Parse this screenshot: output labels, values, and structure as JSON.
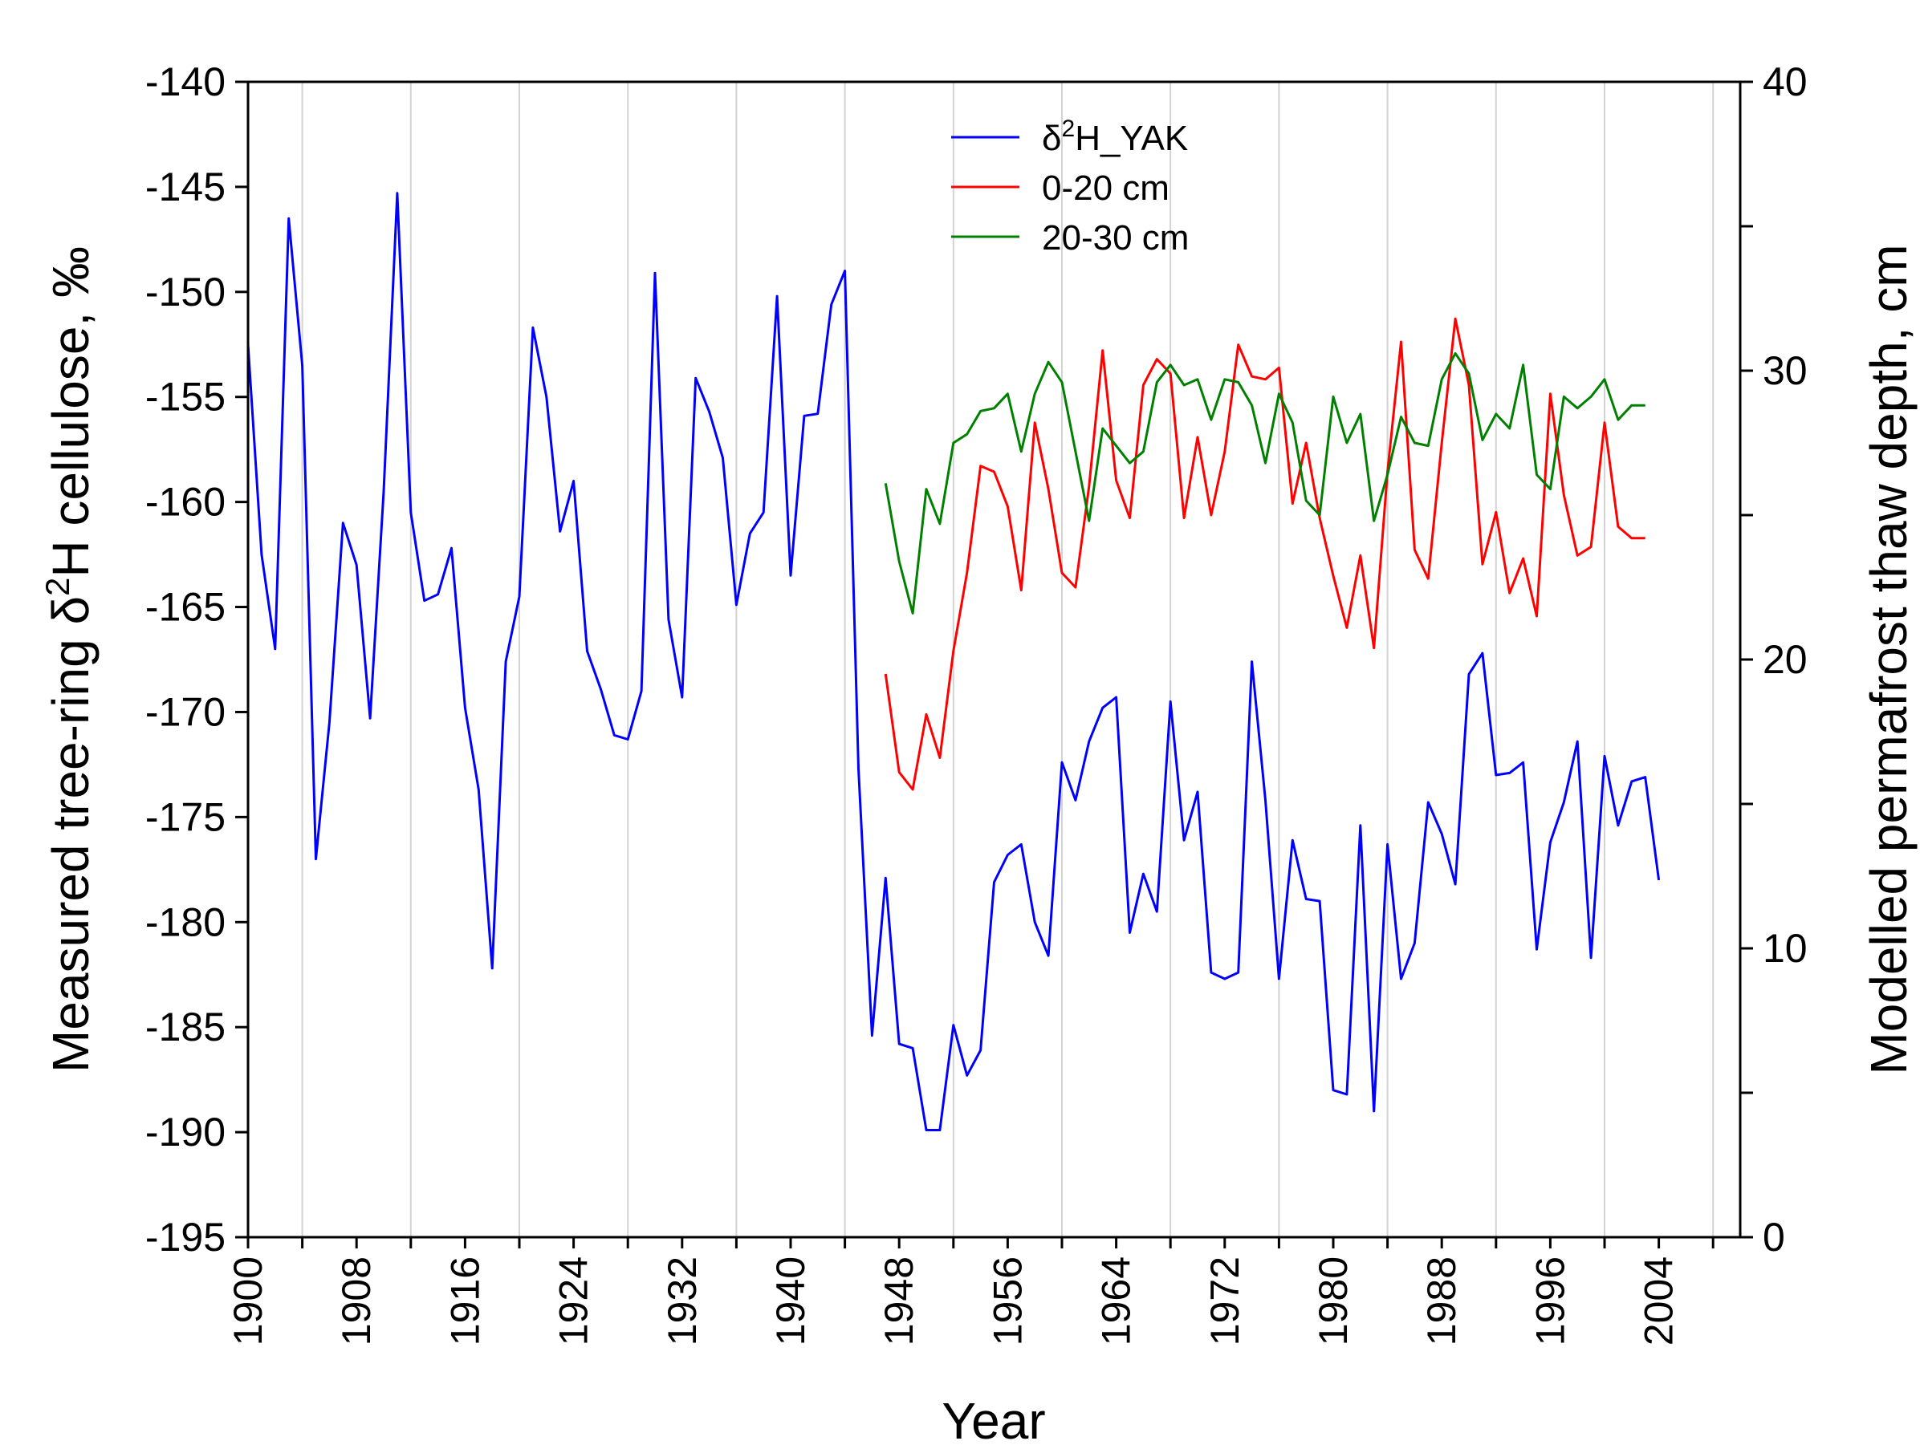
{
  "chart_data": {
    "type": "line",
    "xlabel": "Year",
    "ylabel_left": "Measured tree-ring δ²H cellulose, ‰",
    "ylabel_right": "Modelled permafrost thaw depth, cm",
    "xlim": [
      1900,
      2010
    ],
    "ylim_left": [
      -195,
      -140
    ],
    "ylim_right": [
      0,
      40
    ],
    "x_ticks": [
      1900,
      1908,
      1916,
      1924,
      1932,
      1940,
      1948,
      1956,
      1964,
      1972,
      1980,
      1988,
      1996,
      2004
    ],
    "y_ticks_left": [
      -140,
      -145,
      -150,
      -155,
      -160,
      -165,
      -170,
      -175,
      -180,
      -185,
      -190,
      -195
    ],
    "y_ticks_right": [
      0,
      10,
      20,
      30,
      40
    ],
    "grid": "vertical",
    "legend_position": "top-center",
    "series": [
      {
        "name": "δ²H_YAK",
        "axis": "left",
        "color": "#0000ff",
        "start_year": 1900,
        "values": [
          -152.5,
          -162.5,
          -167.0,
          -146.5,
          -153.5,
          -177.0,
          -170.5,
          -161.0,
          -163.0,
          -170.3,
          -159.5,
          -145.3,
          -160.5,
          -164.7,
          -164.4,
          -162.2,
          -169.8,
          -173.7,
          -182.2,
          -167.6,
          -164.5,
          -151.7,
          -155.0,
          -161.4,
          -159.0,
          -167.1,
          -168.9,
          -171.1,
          -171.3,
          -169.0,
          -149.1,
          -165.6,
          -169.3,
          -154.1,
          -155.7,
          -157.9,
          -164.9,
          -161.5,
          -160.5,
          -150.2,
          -163.5,
          -155.9,
          -155.8,
          -150.6,
          -149.0,
          -172.7,
          -185.4,
          -177.9,
          -185.8,
          -186.0,
          -189.9,
          -189.9,
          -184.9,
          -187.3,
          -186.1,
          -178.1,
          -176.8,
          -176.3,
          -180.0,
          -181.6,
          -172.4,
          -174.2,
          -171.4,
          -169.8,
          -169.3,
          -180.5,
          -177.7,
          -179.5,
          -169.5,
          -176.1,
          -173.8,
          -182.4,
          -182.7,
          -182.4,
          -167.6,
          -174.2,
          -182.7,
          -176.1,
          -178.9,
          -179.0,
          -188.0,
          -188.2,
          -175.4,
          -189.0,
          -176.3,
          -182.7,
          -181.0,
          -174.3,
          -175.8,
          -178.2,
          -168.2,
          -167.2,
          -173.0,
          -172.9,
          -172.4,
          -181.3,
          -176.2,
          -174.3,
          -171.4,
          -181.7,
          -172.1,
          -175.4,
          -173.3,
          -173.1,
          -178.0
        ]
      },
      {
        "name": "0-20 cm",
        "axis": "right",
        "color": "#ff0000",
        "start_year": 1947,
        "values": [
          19.5,
          16.1,
          15.5,
          18.1,
          16.6,
          20.3,
          23.0,
          26.7,
          26.5,
          25.3,
          22.4,
          28.2,
          25.9,
          23.0,
          22.5,
          26.0,
          30.7,
          26.2,
          24.9,
          29.5,
          30.4,
          29.9,
          24.9,
          27.7,
          25.0,
          27.2,
          30.9,
          29.8,
          29.7,
          30.1,
          25.4,
          27.5,
          24.9,
          22.9,
          21.1,
          23.6,
          20.4,
          26.5,
          31.0,
          23.8,
          22.8,
          27.5,
          31.8,
          29.5,
          23.3,
          25.1,
          22.3,
          23.5,
          21.5,
          29.2,
          25.7,
          23.6,
          23.9,
          28.2,
          24.6,
          24.2,
          24.2
        ]
      },
      {
        "name": "20-30 cm",
        "axis": "right",
        "color": "#008000",
        "start_year": 1947,
        "values": [
          26.1,
          23.4,
          21.6,
          25.9,
          24.7,
          27.5,
          27.8,
          28.6,
          28.7,
          29.2,
          27.2,
          29.2,
          30.3,
          29.6,
          27.2,
          24.8,
          28.0,
          27.4,
          26.8,
          27.2,
          29.6,
          30.2,
          29.5,
          29.7,
          28.3,
          29.7,
          29.6,
          28.8,
          26.8,
          29.2,
          28.2,
          25.5,
          25.0,
          29.1,
          27.5,
          28.5,
          24.8,
          26.4,
          28.4,
          27.5,
          27.4,
          29.7,
          30.6,
          29.9,
          27.6,
          28.5,
          28.0,
          30.2,
          26.4,
          25.9,
          29.1,
          28.7,
          29.1,
          29.7,
          28.3,
          28.8,
          28.8
        ]
      }
    ]
  }
}
